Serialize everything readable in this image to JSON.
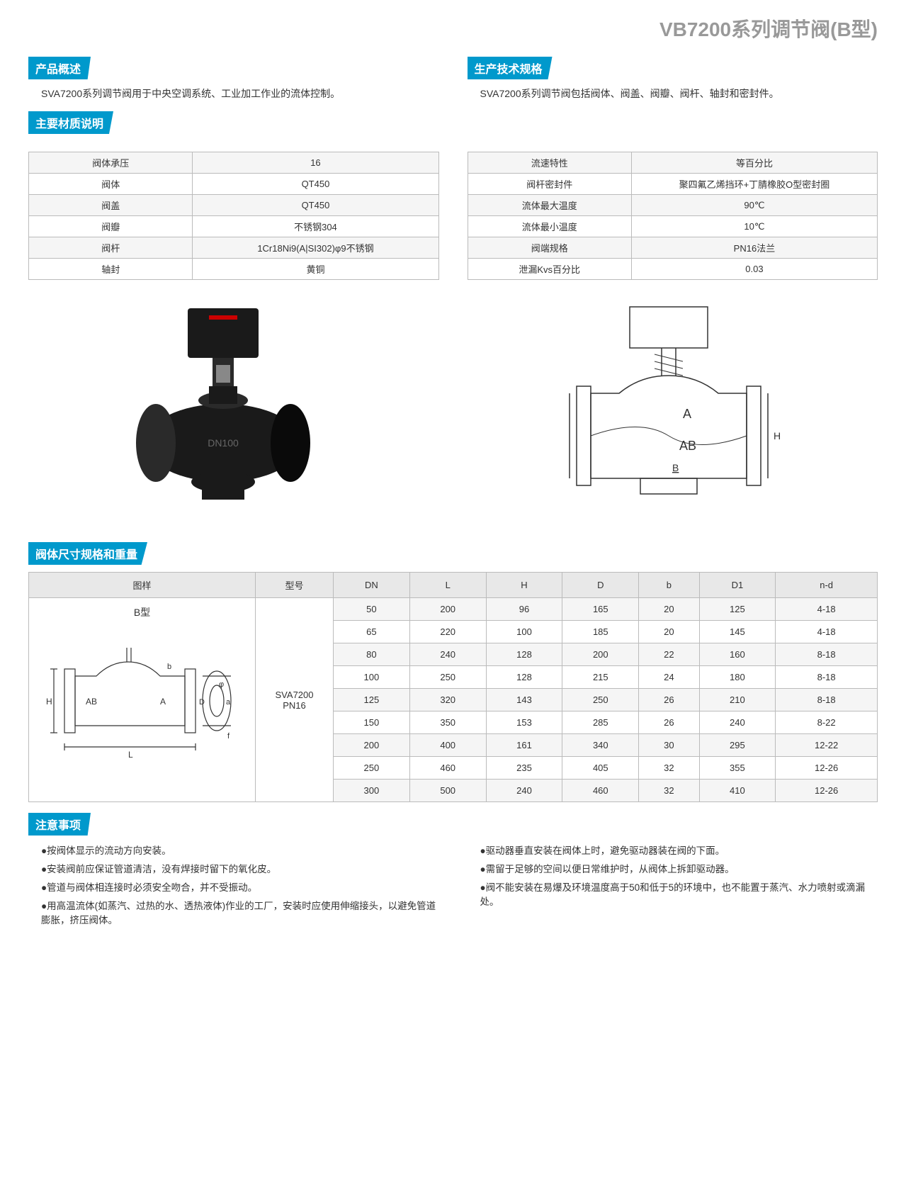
{
  "page_title": "VB7200系列调节阀(B型)",
  "sections": {
    "overview": {
      "title": "产品概述",
      "text": "SVA7200系列调节阀用于中央空调系统、工业加工作业的流体控制。"
    },
    "tech_spec": {
      "title": "生产技术规格",
      "text": "SVA7200系列调节阀包括阀体、阀盖、阀瓣、阀杆、轴封和密封件。"
    },
    "material": {
      "title": "主要材质说明"
    },
    "dimensions": {
      "title": "阀体尺寸规格和重量"
    },
    "notes": {
      "title": "注意事项"
    }
  },
  "material_table_left": [
    [
      "阀体承压",
      "16"
    ],
    [
      "阀体",
      "QT450"
    ],
    [
      "阀盖",
      "QT450"
    ],
    [
      "阀瓣",
      "不锈钢304"
    ],
    [
      "阀杆",
      "1Cr18Ni9(A|SI302)φ9不锈钢"
    ],
    [
      "轴封",
      "黄铜"
    ]
  ],
  "material_table_right": [
    [
      "流速特性",
      "等百分比"
    ],
    [
      "阀杆密封件",
      "聚四氟乙烯挡环+丁腈橡胶O型密封圈"
    ],
    [
      "流体最大温度",
      "90℃"
    ],
    [
      "流体最小温度",
      "10℃"
    ],
    [
      "阀端规格",
      "PN16法兰"
    ],
    [
      "泄漏Kvs百分比",
      "0.03"
    ]
  ],
  "dim_table": {
    "headers": [
      "图样",
      "型号",
      "DN",
      "L",
      "H",
      "D",
      "b",
      "D1",
      "n-d"
    ],
    "diagram_label": "B型",
    "model": "SVA7200\nPN16",
    "rows": [
      [
        "50",
        "200",
        "96",
        "165",
        "20",
        "125",
        "4-18"
      ],
      [
        "65",
        "220",
        "100",
        "185",
        "20",
        "145",
        "4-18"
      ],
      [
        "80",
        "240",
        "128",
        "200",
        "22",
        "160",
        "8-18"
      ],
      [
        "100",
        "250",
        "128",
        "215",
        "24",
        "180",
        "8-18"
      ],
      [
        "125",
        "320",
        "143",
        "250",
        "26",
        "210",
        "8-18"
      ],
      [
        "150",
        "350",
        "153",
        "285",
        "26",
        "240",
        "8-22"
      ],
      [
        "200",
        "400",
        "161",
        "340",
        "30",
        "295",
        "12-22"
      ],
      [
        "250",
        "460",
        "235",
        "405",
        "32",
        "355",
        "12-26"
      ],
      [
        "300",
        "500",
        "240",
        "460",
        "32",
        "410",
        "12-26"
      ]
    ]
  },
  "notes_left": [
    "●按阀体显示的流动方向安装。",
    "●安装阀前应保证管道清洁，没有焊接时留下的氧化皮。",
    "●管道与阀体相连接时必须安全吻合，并不受振动。",
    "●用高温流体(如蒸汽、过热的水、透热液体)作业的工厂，安装时应使用伸缩接头，以避免管道膨胀，挤压阀体。"
  ],
  "notes_right": [
    "●驱动器垂直安装在阀体上时，避免驱动器装在阀的下面。",
    "●需留于足够的空间以便日常维护时，从阀体上拆卸驱动器。",
    "●阀不能安装在易爆及环境温度高于50和低于5的环境中，也不能置于蒸汽、水力喷射或滴漏处。"
  ],
  "colors": {
    "header_bg": "#0099cc",
    "title_color": "#999999",
    "border": "#bbbbbb",
    "row_alt": "#f5f5f5"
  },
  "drawing_labels": {
    "a": "A",
    "b": "B",
    "ab": "AB",
    "h": "H"
  }
}
